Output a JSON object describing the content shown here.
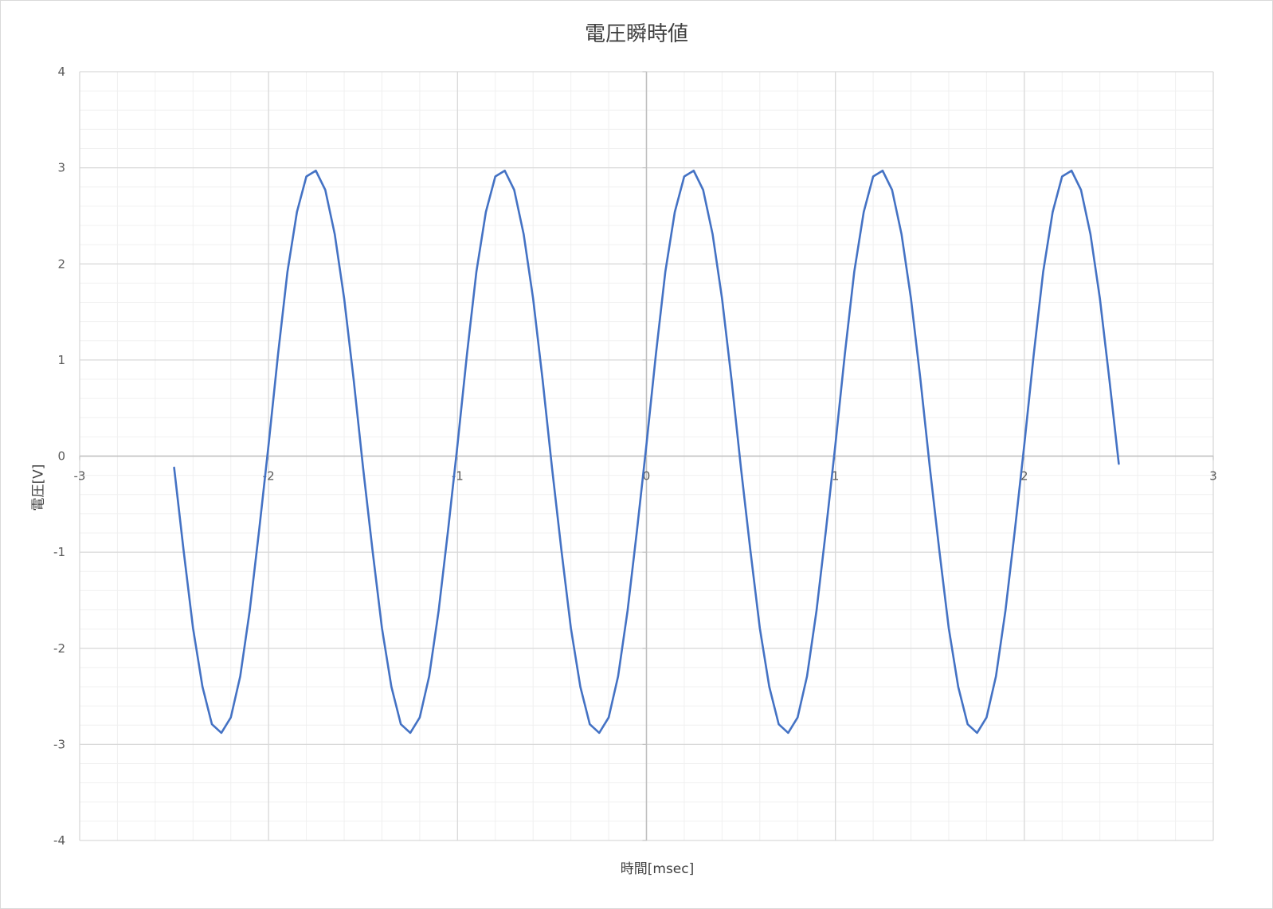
{
  "chart_data": {
    "type": "line",
    "title": "電圧瞬時値",
    "xlabel": "時間[msec]",
    "ylabel": "電圧[V]",
    "xlim": [
      -3,
      3
    ],
    "ylim": [
      -4,
      4
    ],
    "x_major_step": 1,
    "x_minor_step": 0.2,
    "y_major_step": 1,
    "y_minor_step": 0.2,
    "x_tick_labels": [
      "-3",
      "-2",
      "-1",
      "0",
      "1",
      "2",
      "3"
    ],
    "y_tick_labels": [
      "4",
      "3",
      "2",
      "1",
      "0",
      "-1",
      "-2",
      "-3",
      "-4"
    ],
    "grid": true,
    "legend": "none",
    "series": [
      {
        "color": "#4472c4",
        "x": [
          -2.5,
          -2.45,
          -2.4,
          -2.35,
          -2.3,
          -2.25,
          -2.2,
          -2.15,
          -2.1,
          -2.05,
          -2.0,
          -1.95,
          -1.9,
          -1.85,
          -1.8,
          -1.75,
          -1.7,
          -1.65,
          -1.6,
          -1.55,
          -1.5,
          -1.45,
          -1.4,
          -1.35,
          -1.3,
          -1.25,
          -1.2,
          -1.15,
          -1.1,
          -1.05,
          -1.0,
          -0.95,
          -0.9,
          -0.85,
          -0.8,
          -0.75,
          -0.7,
          -0.65,
          -0.6,
          -0.55,
          -0.5,
          -0.45,
          -0.4,
          -0.35,
          -0.3,
          -0.25,
          -0.2,
          -0.15,
          -0.1,
          -0.05,
          0.0,
          0.05,
          0.1,
          0.15,
          0.2,
          0.25,
          0.3,
          0.35,
          0.4,
          0.45,
          0.5,
          0.55,
          0.6,
          0.65,
          0.7,
          0.75,
          0.8,
          0.85,
          0.9,
          0.95,
          1.0,
          1.05,
          1.1,
          1.15,
          1.2,
          1.25,
          1.3,
          1.35,
          1.4,
          1.45,
          1.5,
          1.55,
          1.6,
          1.65,
          1.7,
          1.75,
          1.8,
          1.85,
          1.9,
          1.95,
          2.0,
          2.05,
          2.1,
          2.15,
          2.2,
          2.25,
          2.3,
          2.35,
          2.4,
          2.45,
          2.5
        ],
        "y": [
          -0.12,
          -0.98,
          -1.79,
          -2.4,
          -2.79,
          -2.88,
          -2.72,
          -2.29,
          -1.61,
          -0.77,
          0.12,
          1.06,
          1.92,
          2.54,
          2.91,
          2.97,
          2.77,
          2.31,
          1.64,
          0.8,
          -0.12,
          -0.98,
          -1.79,
          -2.4,
          -2.79,
          -2.88,
          -2.72,
          -2.29,
          -1.61,
          -0.77,
          0.12,
          1.06,
          1.92,
          2.54,
          2.91,
          2.97,
          2.77,
          2.31,
          1.64,
          0.8,
          -0.12,
          -0.98,
          -1.79,
          -2.4,
          -2.79,
          -2.88,
          -2.72,
          -2.29,
          -1.61,
          -0.77,
          0.12,
          1.06,
          1.92,
          2.54,
          2.91,
          2.97,
          2.77,
          2.31,
          1.64,
          0.8,
          -0.12,
          -0.98,
          -1.79,
          -2.4,
          -2.79,
          -2.88,
          -2.72,
          -2.29,
          -1.61,
          -0.77,
          0.12,
          1.06,
          1.92,
          2.54,
          2.91,
          2.97,
          2.77,
          2.31,
          1.64,
          0.8,
          -0.12,
          -0.98,
          -1.79,
          -2.4,
          -2.79,
          -2.88,
          -2.72,
          -2.29,
          -1.61,
          -0.77,
          0.12,
          1.06,
          1.92,
          2.54,
          2.91,
          2.97,
          2.77,
          2.31,
          1.64,
          0.8,
          -0.08
        ]
      }
    ]
  }
}
